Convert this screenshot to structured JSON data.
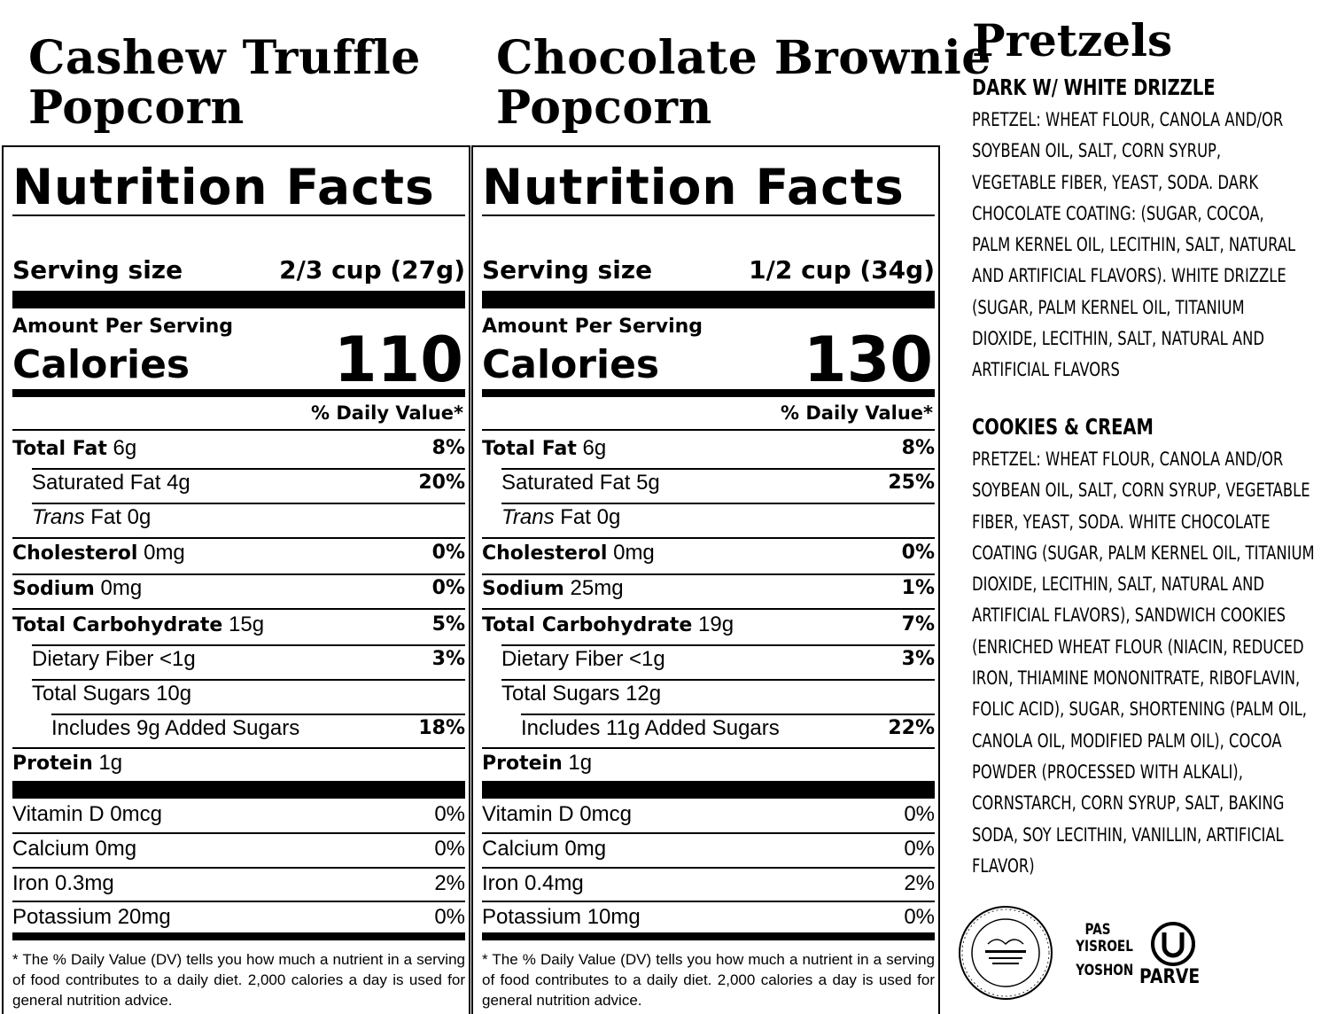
{
  "products": [
    {
      "title_lines": [
        "Cashew Truffle",
        "Popcorn"
      ],
      "nutrition": {
        "heading": "Nutrition Facts",
        "serving_label": "Serving size",
        "serving_value": "2/3 cup (27g)",
        "amount_per_serving": "Amount Per Serving",
        "calories_label": "Calories",
        "calories": "110",
        "dv_header": "% Daily Value*",
        "rows": [
          {
            "bold": "Total Fat",
            "amt": "6g",
            "pct": "8%"
          },
          {
            "name": "Saturated Fat 4g",
            "pct": "20%"
          },
          {
            "italic": "Trans",
            "amt": "Fat 0g",
            "pct": ""
          },
          {
            "bold": "Cholesterol",
            "amt": "0mg",
            "pct": "0%"
          },
          {
            "bold": "Sodium",
            "amt": "0mg",
            "pct": "0%"
          },
          {
            "bold": "Total Carbohydrate",
            "amt": "15g",
            "pct": "5%"
          },
          {
            "name": "Dietary Fiber <1g",
            "pct": "3%"
          },
          {
            "name": "Total Sugars 10g",
            "pct": ""
          },
          {
            "name": "Includes 9g Added Sugars",
            "pct": "18%"
          },
          {
            "bold": "Protein",
            "amt": "1g",
            "pct": ""
          }
        ],
        "vitamins": [
          {
            "name": "Vitamin D 0mcg",
            "pct": "0%"
          },
          {
            "name": "Calcium 0mg",
            "pct": "0%"
          },
          {
            "name": "Iron 0.3mg",
            "pct": "2%"
          },
          {
            "name": "Potassium 20mg",
            "pct": "0%"
          }
        ],
        "footnote": "* The % Daily Value (DV) tells you how much a nutrient in a serving of food contributes to a daily diet. 2,000 calories a day is used for general nutrition advice."
      }
    },
    {
      "title_lines": [
        "Chocolate Brownie",
        "Popcorn"
      ],
      "nutrition": {
        "heading": "Nutrition Facts",
        "serving_label": "Serving size",
        "serving_value": "1/2 cup (34g)",
        "amount_per_serving": "Amount Per Serving",
        "calories_label": "Calories",
        "calories": "130",
        "dv_header": "% Daily Value*",
        "rows": [
          {
            "bold": "Total Fat",
            "amt": "6g",
            "pct": "8%"
          },
          {
            "name": "Saturated Fat 5g",
            "pct": "25%"
          },
          {
            "italic": "Trans",
            "amt": "Fat 0g",
            "pct": ""
          },
          {
            "bold": "Cholesterol",
            "amt": "0mg",
            "pct": "0%"
          },
          {
            "bold": "Sodium",
            "amt": "25mg",
            "pct": "1%"
          },
          {
            "bold": "Total Carbohydrate",
            "amt": "19g",
            "pct": "7%"
          },
          {
            "name": "Dietary Fiber <1g",
            "pct": "3%"
          },
          {
            "name": "Total Sugars 12g",
            "pct": ""
          },
          {
            "name": "Includes 11g Added Sugars",
            "pct": "22%"
          },
          {
            "bold": "Protein",
            "amt": "1g",
            "pct": ""
          }
        ],
        "vitamins": [
          {
            "name": "Vitamin D 0mcg",
            "pct": "0%"
          },
          {
            "name": "Calcium 0mg",
            "pct": "0%"
          },
          {
            "name": "Iron 0.4mg",
            "pct": "2%"
          },
          {
            "name": "Potassium 10mg",
            "pct": "0%"
          }
        ],
        "footnote": "* The % Daily Value (DV) tells you how much a nutrient in a serving of food contributes to a daily diet. 2,000 calories a day is used for general nutrition advice."
      }
    }
  ],
  "pretzels": {
    "title": "Pretzels",
    "dark": {
      "heading": "DARK W/ WHITE DRIZZLE",
      "lines": [
        "PRETZEL: WHEAT FLOUR, CANOLA AND/OR",
        "SOYBEAN OIL, SALT, CORN SYRUP,",
        "VEGETABLE FIBER, YEAST, SODA. DARK",
        "CHOCOLATE COATING:  (SUGAR, COCOA,",
        "PALM KERNEL OIL, LECITHIN, SALT, NATURAL",
        "AND ARTIFICIAL FLAVORS).  WHITE DRIZZLE",
        "(SUGAR, PALM KERNEL OIL, TITANIUM",
        "DIOXIDE, LECITHIN, SALT, NATURAL AND",
        "ARTIFICIAL FLAVORS"
      ]
    },
    "cookies": {
      "heading": "COOKIES & CREAM",
      "lines": [
        "PRETZEL: WHEAT FLOUR, CANOLA AND/OR",
        "SOYBEAN OIL, SALT, CORN SYRUP, VEGETABLE",
        "FIBER, YEAST, SODA.  WHITE CHOCOLATE",
        "COATING (SUGAR, PALM KERNEL OIL, TITANIUM",
        "DIOXIDE, LECITHIN, SALT, NATURAL AND",
        "ARTIFICIAL FLAVORS), SANDWICH COOKIES",
        "(ENRICHED WHEAT FLOUR (NIACIN, REDUCED",
        "IRON, THIAMINE MONONITRATE, RIBOFLAVIN,",
        "FOLIC ACID), SUGAR, SHORTENING (PALM OIL,",
        "CANOLA OIL, MODIFIED PALM OIL), COCOA",
        "POWDER (PROCESSED WITH ALKALI),",
        "CORNSTARCH, CORN SYRUP, SALT, BAKING",
        "SODA, SOY LECITHIN, VANILLIN, ARTIFICIAL",
        "FLAVOR)"
      ]
    }
  },
  "certifications": {
    "seal_icon": "kosher-seal-icon",
    "pas_yisroel": [
      "PAS",
      "YISROEL"
    ],
    "yoshon": "YOSHON",
    "ou_symbol": "U",
    "parve": "PARVE"
  }
}
